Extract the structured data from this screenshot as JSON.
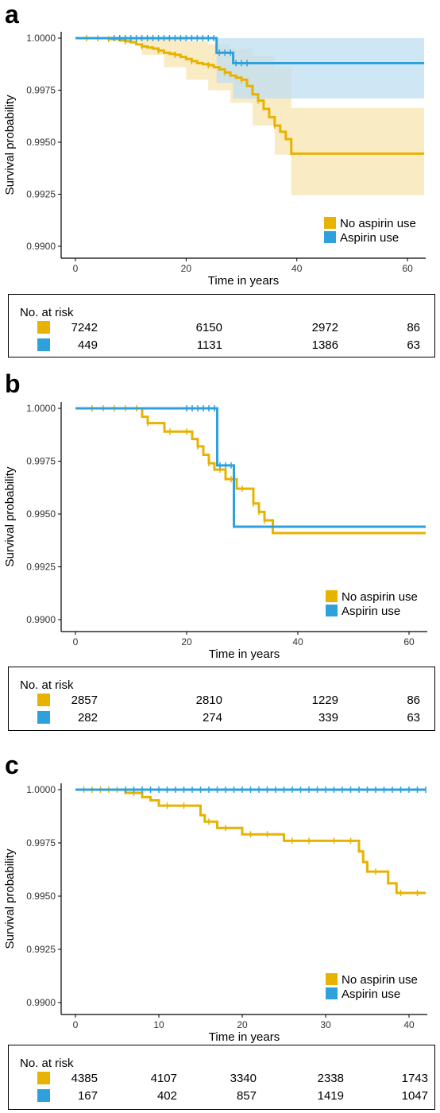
{
  "colors": {
    "no_aspirin": "#E8B200",
    "aspirin": "#2EA1DC",
    "band_no_aspirin": "#F7E4B0",
    "band_aspirin": "#BFDDF2"
  },
  "panels": [
    {
      "letter": "a",
      "risk_title": "No. at risk",
      "risk_rows": [
        {
          "key": "no_aspirin",
          "values": [
            "7242",
            "6150",
            "2972",
            "86"
          ]
        },
        {
          "key": "aspirin",
          "values": [
            "449",
            "1131",
            "1386",
            "63"
          ]
        }
      ]
    },
    {
      "letter": "b",
      "risk_title": "No. at risk",
      "risk_rows": [
        {
          "key": "no_aspirin",
          "values": [
            "2857",
            "2810",
            "1229",
            "86"
          ]
        },
        {
          "key": "aspirin",
          "values": [
            "282",
            "274",
            "339",
            "63"
          ]
        }
      ]
    },
    {
      "letter": "c",
      "risk_title": "No. at risk",
      "risk_rows": [
        {
          "key": "no_aspirin",
          "values": [
            "4385",
            "4107",
            "3340",
            "2338",
            "1743"
          ]
        },
        {
          "key": "aspirin",
          "values": [
            "167",
            "402",
            "857",
            "1419",
            "1047"
          ]
        }
      ]
    }
  ],
  "chart_data": [
    {
      "type": "line",
      "xlabel": "Time in years",
      "ylabel": "Survival probability",
      "xlim": [
        0,
        63
      ],
      "ylim": [
        0.99,
        1.0
      ],
      "xticks": [
        0,
        20,
        40,
        60
      ],
      "yticks": [
        "0.9900",
        "0.9925",
        "0.9950",
        "0.9975",
        "1.0000"
      ],
      "legend": [
        "No aspirin use",
        "Aspirin use"
      ],
      "legend_position": "bottom-right",
      "grid": false,
      "series": [
        {
          "name": "No aspirin use",
          "key": "no_aspirin",
          "steps": [
            [
              0,
              1.0
            ],
            [
              6,
              0.99995
            ],
            [
              8,
              0.9999
            ],
            [
              9,
              0.99985
            ],
            [
              10,
              0.9998
            ],
            [
              11,
              0.9997
            ],
            [
              12,
              0.9996
            ],
            [
              13,
              0.99955
            ],
            [
              14,
              0.9995
            ],
            [
              15,
              0.9994
            ],
            [
              16,
              0.9993
            ],
            [
              17,
              0.99925
            ],
            [
              18,
              0.9992
            ],
            [
              19,
              0.9991
            ],
            [
              20,
              0.999
            ],
            [
              21,
              0.9989
            ],
            [
              22,
              0.9988
            ],
            [
              23,
              0.99875
            ],
            [
              24,
              0.9987
            ],
            [
              25,
              0.9986
            ],
            [
              26,
              0.9985
            ],
            [
              27,
              0.99835
            ],
            [
              28,
              0.9982
            ],
            [
              29,
              0.9981
            ],
            [
              30,
              0.998
            ],
            [
              31,
              0.9977
            ],
            [
              32,
              0.9973
            ],
            [
              33,
              0.997
            ],
            [
              34,
              0.9966
            ],
            [
              35,
              0.9962
            ],
            [
              36,
              0.9958
            ],
            [
              37,
              0.9955
            ],
            [
              38,
              0.99515
            ],
            [
              39,
              0.99445
            ],
            [
              63,
              0.99445
            ]
          ],
          "band": [
            [
              0,
              1.0,
              1.0
            ],
            [
              8,
              0.9998,
              1.0
            ],
            [
              12,
              0.9992,
              1.0
            ],
            [
              16,
              0.9986,
              0.99995
            ],
            [
              20,
              0.998,
              0.99985
            ],
            [
              24,
              0.9975,
              0.9997
            ],
            [
              28,
              0.9969,
              0.9995
            ],
            [
              32,
              0.9958,
              0.99915
            ],
            [
              36,
              0.9944,
              0.9986
            ],
            [
              39,
              0.99245,
              0.99665
            ],
            [
              63,
              0.99245,
              0.99665
            ]
          ],
          "censor_x": [
            2,
            4,
            6,
            9,
            12,
            15,
            18,
            21,
            24,
            27,
            30,
            33,
            36
          ]
        },
        {
          "name": "Aspirin use",
          "key": "aspirin",
          "steps": [
            [
              0,
              1.0
            ],
            [
              25.5,
              0.9993
            ],
            [
              28.5,
              0.9988
            ],
            [
              63,
              0.9988
            ]
          ],
          "band": [
            [
              0,
              1.0,
              1.0
            ],
            [
              25.5,
              0.99785,
              1.0
            ],
            [
              28.5,
              0.9971,
              1.0
            ],
            [
              63,
              0.9971,
              1.0
            ]
          ],
          "censor_x": [
            7,
            8,
            9,
            10,
            11,
            12,
            13,
            14,
            15,
            16,
            17,
            18,
            19,
            20,
            21,
            22,
            23,
            24,
            25,
            26,
            27,
            28,
            29,
            30,
            31
          ]
        }
      ]
    },
    {
      "type": "line",
      "xlabel": "Time in years",
      "ylabel": "Survival probability",
      "xlim": [
        0,
        63
      ],
      "ylim": [
        0.99,
        1.0
      ],
      "xticks": [
        0,
        20,
        40,
        60
      ],
      "yticks": [
        "0.9900",
        "0.9925",
        "0.9950",
        "0.9975",
        "1.0000"
      ],
      "legend": [
        "No aspirin use",
        "Aspirin use"
      ],
      "legend_position": "bottom-right",
      "grid": false,
      "series": [
        {
          "name": "No aspirin use",
          "key": "no_aspirin",
          "steps": [
            [
              0,
              1.0
            ],
            [
              12,
              0.9996
            ],
            [
              13,
              0.9993
            ],
            [
              16,
              0.9989
            ],
            [
              21,
              0.99855
            ],
            [
              22,
              0.9982
            ],
            [
              23,
              0.9978
            ],
            [
              24,
              0.9974
            ],
            [
              25,
              0.9971
            ],
            [
              27,
              0.99665
            ],
            [
              29,
              0.9962
            ],
            [
              32,
              0.9955
            ],
            [
              33,
              0.9951
            ],
            [
              34,
              0.9947
            ],
            [
              35.5,
              0.9941
            ],
            [
              63,
              0.9941
            ]
          ],
          "censor_x": [
            3,
            5,
            7,
            9,
            11,
            13,
            17,
            20,
            22,
            24,
            26,
            28,
            30,
            32,
            33,
            34
          ]
        },
        {
          "name": "Aspirin use",
          "key": "aspirin",
          "steps": [
            [
              0,
              1.0
            ],
            [
              25.5,
              0.9973
            ],
            [
              28.5,
              0.9944
            ],
            [
              63,
              0.9944
            ]
          ],
          "censor_x": [
            20,
            21,
            22,
            23,
            24,
            25,
            26,
            27,
            28
          ]
        }
      ]
    },
    {
      "type": "line",
      "xlabel": "Time in years",
      "ylabel": "Survival probability",
      "xlim": [
        0,
        42
      ],
      "ylim": [
        0.99,
        1.0
      ],
      "xticks": [
        0,
        10,
        20,
        30,
        40
      ],
      "yticks": [
        "0.9900",
        "0.9925",
        "0.9950",
        "0.9975",
        "1.0000"
      ],
      "legend": [
        "No aspirin use",
        "Aspirin use"
      ],
      "legend_position": "bottom-right",
      "grid": false,
      "series": [
        {
          "name": "No aspirin use",
          "key": "no_aspirin",
          "steps": [
            [
              0,
              1.0
            ],
            [
              6,
              0.99985
            ],
            [
              8,
              0.99965
            ],
            [
              9,
              0.9995
            ],
            [
              10,
              0.99925
            ],
            [
              15,
              0.9988
            ],
            [
              15.5,
              0.9985
            ],
            [
              17,
              0.9982
            ],
            [
              20,
              0.9979
            ],
            [
              25,
              0.9976
            ],
            [
              34,
              0.9971
            ],
            [
              34.5,
              0.9966
            ],
            [
              35,
              0.99615
            ],
            [
              37.5,
              0.9956
            ],
            [
              38.5,
              0.99515
            ],
            [
              42,
              0.99515
            ]
          ],
          "censor_x": [
            1,
            2,
            3,
            4,
            5,
            7,
            11,
            13,
            16,
            18,
            21,
            23,
            26,
            28,
            31,
            33,
            36,
            39,
            41
          ]
        },
        {
          "name": "Aspirin use",
          "key": "aspirin",
          "steps": [
            [
              0,
              1.0
            ],
            [
              42,
              1.0
            ]
          ],
          "censor_x": [
            6,
            7,
            8,
            9,
            10,
            11,
            12,
            13,
            14,
            15,
            16,
            17,
            18,
            19,
            20,
            21,
            22,
            23,
            24,
            25,
            26,
            27,
            28,
            29,
            30,
            31,
            32,
            33,
            34,
            35,
            36,
            37,
            38,
            39,
            40,
            41,
            42
          ]
        }
      ]
    }
  ]
}
